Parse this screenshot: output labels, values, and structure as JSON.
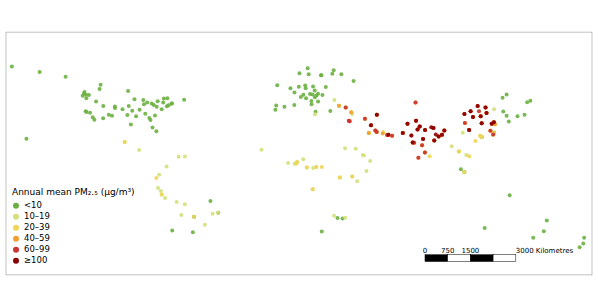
{
  "chart_data": {
    "type": "scatter",
    "legend_title": "Annual mean PM₂.₅ (μg/m³)",
    "legend": "lower left",
    "tick_labels": false,
    "grid": false,
    "marker": "circle",
    "xlim": [
      -170,
      180
    ],
    "ylim": [
      -60,
      85
    ],
    "annotations": [
      "0",
      "750",
      "1500",
      "3000 Kilometres"
    ],
    "series": [
      {
        "name": "<10",
        "color": "#6ab040",
        "x": [
          -122.3,
          -118.2,
          -87.6,
          -73.9,
          -71.1,
          -77.0,
          -80.2,
          -93.3,
          -104.9,
          -111.9,
          -122.4,
          -123.1,
          -114.1,
          -79.4,
          -75.7,
          -73.6,
          -63.6,
          -97.1,
          -113.5,
          -123.4,
          -70.9,
          -83.0,
          -84.4,
          -86.8,
          -90.2,
          -96.7,
          -100.4,
          -105.0,
          -112.0,
          -117.2,
          -119.8,
          -121.9,
          -122.0,
          -94.6,
          -88.0,
          -72.9,
          -76.1,
          -80.0,
          -82.5,
          -81.7,
          -85.7,
          -83.7,
          -81.0,
          -92.3,
          -95.4,
          -97.5,
          -106.7,
          -108.6,
          -116.2,
          -120.5,
          -124.2,
          -134.4,
          -149.9,
          -157.8,
          -166.5,
          -8.0,
          -3.7,
          2.3,
          4.9,
          13.4,
          18.1,
          24.9,
          10.8,
          5.3,
          -0.1,
          144.9,
          151.2,
          172.6,
          174.8,
          153.0,
          115.9,
          130.8,
          -43.2,
          -70.7,
          -58.4,
          18.4,
          10.2,
          25.7,
          14.5,
          16.4,
          19.0,
          21.0,
          14.4,
          2.2,
          -8.6,
          -9.1,
          12.5,
          11.6,
          9.2,
          6.1,
          7.6,
          8.7,
          9.0,
          13.1,
          15.4,
          16.4,
          14.9,
          12.4,
          23.7,
          28.0,
          31.0,
          18.6,
          103.8,
          101.7,
          114.2,
          121.5,
          127.0,
          129.0,
          135.5,
          139.7,
          141.3,
          143.2,
          130.3,
          37.6,
          30.3,
          -57.7,
          -47.9,
          126.6,
          129.0,
          175.3
        ],
        "values": [
          47.6,
          34.1,
          41.9,
          40.7,
          42.4,
          38.9,
          25.8,
          44.9,
          39.7,
          40.8,
          37.8,
          49.3,
          51.0,
          43.7,
          45.4,
          45.5,
          44.6,
          49.9,
          53.5,
          48.4,
          42.4,
          42.3,
          33.7,
          36.2,
          38.6,
          40.8,
          39.0,
          40.6,
          33.5,
          32.7,
          36.8,
          37.3,
          45.5,
          38.0,
          44.5,
          41.3,
          43.0,
          40.4,
          28.0,
          41.5,
          42.9,
          32.5,
          35.2,
          34.7,
          29.8,
          35.5,
          35.1,
          35.7,
          43.6,
          47.5,
          47.0,
          58.3,
          61.2,
          21.3,
          64.5,
          53.3,
          40.4,
          48.9,
          52.4,
          52.5,
          59.3,
          60.2,
          59.9,
          60.4,
          51.5,
          -37.8,
          -33.9,
          -43.5,
          -41.3,
          -27.5,
          -32.0,
          -12.5,
          -22.9,
          -33.5,
          -34.6,
          59.3,
          63.4,
          62.2,
          46.1,
          48.2,
          47.5,
          52.2,
          50.1,
          41.4,
          41.1,
          38.7,
          41.9,
          48.1,
          45.5,
          46.2,
          47.6,
          53.1,
          51.5,
          47.8,
          47.1,
          43.5,
          37.5,
          43.9,
          37.9,
          -26.0,
          -26.3,
          -34.1,
          1.4,
          3.1,
          22.3,
          25.0,
          37.6,
          35.1,
          34.7,
          35.7,
          43.1,
          44.0,
          31.6,
          55.8,
          59.9,
          -25.3,
          -15.8,
          45.8,
          47.7,
          -37.8
        ]
      },
      {
        "name": "10–19",
        "color": "#d4e07a",
        "x": [
          -99.1,
          -90.5,
          -66.9,
          -74.1,
          -77.0,
          -78.5,
          -79.2,
          -77.5,
          -75.0,
          -68.1,
          -63.2,
          -65.3,
          -43.4,
          -46.6,
          -51.2,
          28.9,
          32.9,
          36.8,
          26.1,
          44.4,
          51.4,
          46.7,
          43.1,
          67.0,
          80.3,
          77.1,
          72.9,
          85.3,
          104.9,
          100.5,
          102.8,
          96.2,
          114.1,
          120.9,
          121.4,
          116.4,
          106.6,
          113.2,
          114.1,
          112.6,
          121.5,
          117.0,
          103.7,
          100.5,
          35.2,
          34.8,
          15.3,
          7.5,
          -1.5,
          -17.4,
          3.9,
          13.2,
          25.9,
          32.6,
          36.8,
          39.7,
          32.5,
          38.9,
          43.8,
          45.3,
          47.5,
          2.4,
          3.4,
          13.5,
          9.7,
          29.4,
          14.5,
          -63.2
        ],
        "values": [
          19.4,
          14.6,
          10.5,
          4.7,
          -12.0,
          -0.2,
          -8.1,
          -9.9,
          -14.1,
          -16.5,
          -17.8,
          -24.2,
          -22.9,
          -23.5,
          -30.0,
          41.0,
          39.9,
          36.1,
          44.4,
          33.3,
          25.3,
          24.7,
          11.6,
          24.8,
          13.1,
          28.6,
          19.1,
          27.7,
          11.6,
          13.8,
          24.9,
          16.9,
          22.5,
          23.7,
          31.2,
          39.9,
          26.6,
          23.1,
          30.6,
          37.9,
          38.9,
          36.7,
          1.3,
          13.7,
          31.8,
          32.1,
          4.4,
          9.1,
          6.8,
          14.7,
          7.4,
          -8.8,
          -24.7,
          -25.9,
          -1.3,
          -4.0,
          15.6,
          15.3,
          11.3,
          2.0,
          8.0,
          6.4,
          6.5,
          3.9,
          4.1,
          -1.9,
          35.9,
          10.7
        ]
      },
      {
        "name": "20–39",
        "color": "#f0d555",
        "x": [
          -99.1,
          -80.2,
          -77.0,
          -57.7,
          28.9,
          32.9,
          35.2,
          36.2,
          34.8,
          44.4,
          46.7,
          51.4,
          51.5,
          57.6,
          58.4,
          60.6,
          55.3,
          67.0,
          69.8,
          72.9,
          74.9,
          74.6,
          77.1,
          78.5,
          80.2,
          80.3,
          83.0,
          85.3,
          85.8,
          88.4,
          90.4,
          91.8,
          114.1,
          116.4,
          117.0,
          119.3,
          120.1,
          121.0,
          121.4,
          121.5,
          122.1,
          106.6,
          104.1,
          108.9,
          110.4,
          113.2,
          113.5,
          114.1,
          106.7,
          100.5,
          103.7,
          29.4,
          36.8,
          3.4,
          13.2,
          3.9,
          9.7,
          18.6,
          15.3,
          48.0,
          50.6,
          46.7
        ],
        "values": [
          19.4,
          -2.2,
          -12.0,
          -25.3,
          41.0,
          39.9,
          31.8,
          37.1,
          32.1,
          33.3,
          24.7,
          25.3,
          35.7,
          23.6,
          23.7,
          23.1,
          25.3,
          24.8,
          30.2,
          19.1,
          32.1,
          42.9,
          28.6,
          17.4,
          13.1,
          26.5,
          10.8,
          27.7,
          20.3,
          22.6,
          23.7,
          26.2,
          22.5,
          39.9,
          36.7,
          26.1,
          30.3,
          23.9,
          31.2,
          25.0,
          29.9,
          26.6,
          30.7,
          34.3,
          20.0,
          23.1,
          34.8,
          30.6,
          10.8,
          13.7,
          1.3,
          -1.9,
          -1.3,
          6.5,
          -8.8,
          7.4,
          4.1,
          4.4,
          4.4,
          29.4,
          26.2,
          24.7
        ]
      },
      {
        "name": "40–59",
        "color": "#f0a030",
        "x": [
          67.0,
          69.8,
          72.9,
          74.6,
          74.9,
          77.1,
          78.5,
          80.2,
          80.3,
          85.3,
          85.8,
          88.4,
          90.4,
          91.8,
          75.8,
          79.1,
          76.3,
          73.8,
          116.4,
          117.0,
          119.3,
          120.1,
          121.0,
          121.4,
          122.1,
          106.6,
          104.1,
          108.9,
          113.5,
          114.1,
          107.5,
          111.7,
          103.8,
          51.4,
          51.5,
          44.4,
          46.7,
          57.6,
          58.4,
          60.6,
          35.2,
          34.8,
          36.2,
          28.9,
          32.9,
          48.0,
          50.6,
          55.0
        ],
        "values": [
          24.8,
          30.2,
          19.1,
          42.9,
          32.1,
          28.6,
          17.4,
          13.1,
          26.5,
          27.7,
          20.3,
          22.6,
          23.7,
          26.2,
          26.9,
          21.1,
          10.0,
          18.9,
          39.9,
          36.7,
          26.1,
          30.3,
          23.9,
          31.2,
          29.9,
          26.6,
          30.7,
          34.3,
          34.8,
          30.6,
          37.7,
          40.8,
          36.1,
          25.3,
          35.7,
          33.3,
          24.7,
          23.6,
          23.7,
          23.1,
          31.8,
          32.1,
          37.1,
          41.0,
          39.9,
          29.4,
          26.2,
          24.5
        ]
      },
      {
        "name": "60–99",
        "color": "#cc3333",
        "x": [
          67.0,
          69.8,
          72.9,
          74.9,
          74.6,
          77.1,
          78.5,
          80.2,
          80.3,
          75.8,
          79.1,
          76.3,
          73.8,
          72.1,
          85.3,
          85.8,
          88.4,
          90.4,
          91.8,
          116.4,
          117.0,
          119.3,
          120.1,
          121.0,
          121.4,
          106.6,
          104.1,
          108.9,
          113.5,
          114.1,
          107.5,
          111.7,
          103.8,
          112.5,
          51.4,
          51.5,
          44.4,
          57.6,
          58.4,
          60.6,
          35.2,
          34.8,
          32.9,
          48.0,
          50.6
        ],
        "values": [
          24.8,
          30.2,
          19.1,
          32.1,
          42.9,
          28.6,
          17.4,
          13.1,
          26.5,
          26.9,
          21.1,
          10.0,
          18.9,
          23.2,
          27.7,
          20.3,
          22.6,
          23.7,
          26.2,
          39.9,
          36.7,
          26.1,
          30.3,
          23.9,
          31.2,
          26.6,
          30.7,
          34.3,
          34.8,
          30.6,
          37.7,
          40.8,
          36.1,
          37.8,
          25.3,
          35.7,
          33.3,
          23.6,
          23.7,
          23.1,
          31.8,
          32.1,
          39.9,
          29.4,
          26.2
        ]
      },
      {
        "name": "≥100",
        "color": "#8b0000",
        "x": [
          67.0,
          69.8,
          72.9,
          74.9,
          77.1,
          80.3,
          75.8,
          79.1,
          72.1,
          85.3,
          85.8,
          88.4,
          90.4,
          91.8,
          84.0,
          86.7,
          116.4,
          117.0,
          120.1,
          121.4,
          106.6,
          108.9,
          113.5,
          114.1,
          107.5,
          111.7,
          103.8,
          51.5,
          58.4,
          48.0
        ],
        "values": [
          24.8,
          30.2,
          19.1,
          32.1,
          28.6,
          26.5,
          26.9,
          21.1,
          23.2,
          27.7,
          20.3,
          22.6,
          23.7,
          26.2,
          28.2,
          23.8,
          39.9,
          36.7,
          30.3,
          31.2,
          26.6,
          34.3,
          34.8,
          30.6,
          37.7,
          40.8,
          36.1,
          35.7,
          23.7,
          29.4
        ]
      }
    ]
  }
}
